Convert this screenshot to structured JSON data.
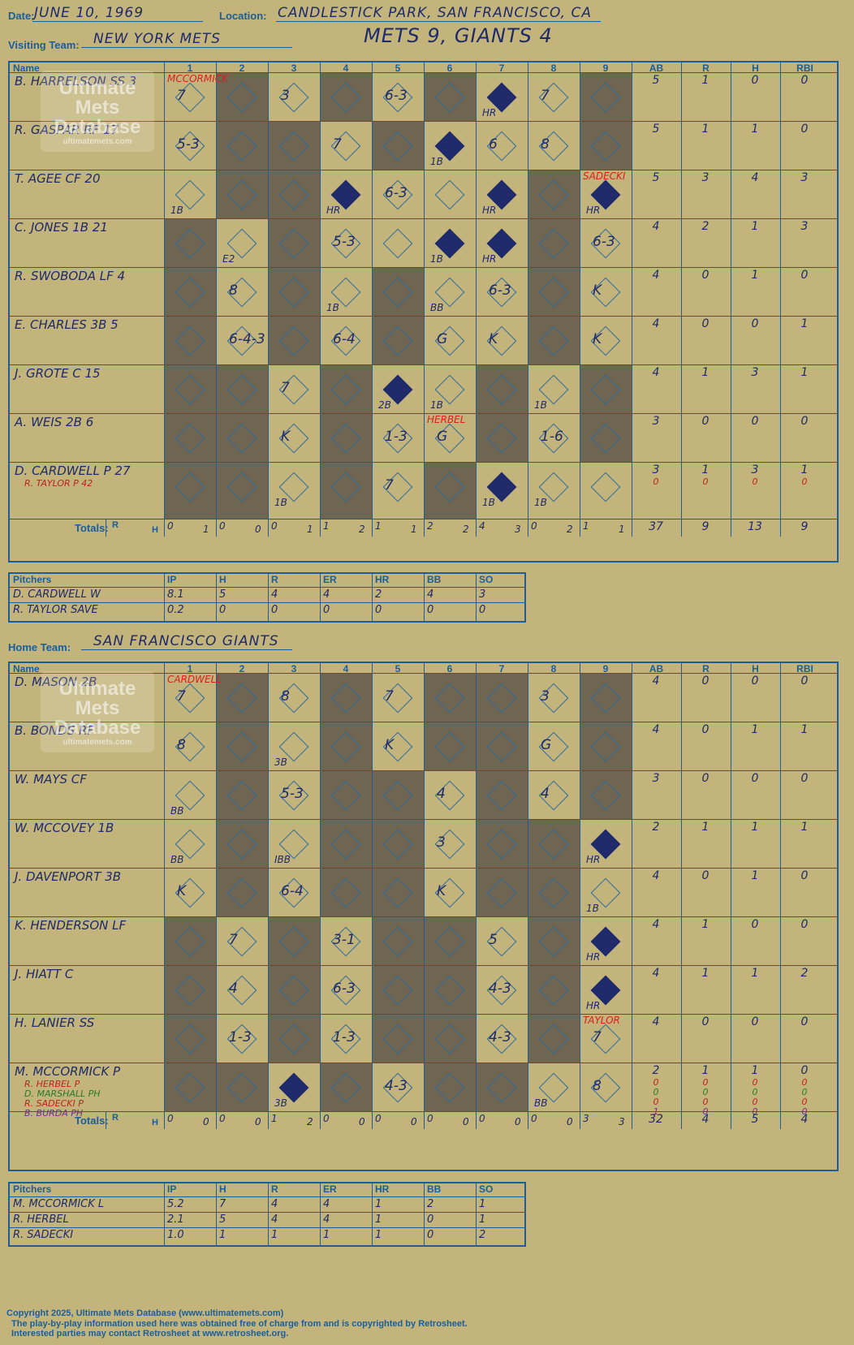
{
  "header": {
    "date_label": "Date:",
    "date": "JUNE 10, 1969",
    "location_label": "Location:",
    "location": "CANDLESTICK PARK, SAN FRANCISCO, CA",
    "visiting_label": "Visiting Team:",
    "visiting": "NEW YORK METS",
    "score": "METS 9, GIANTS 4",
    "home_label": "Home Team:",
    "home": "SAN FRANCISCO GIANTS"
  },
  "columns": {
    "name": "Name",
    "innings": [
      "1",
      "2",
      "3",
      "4",
      "5",
      "6",
      "7",
      "8",
      "9"
    ],
    "stats": [
      "AB",
      "R",
      "H",
      "RBI"
    ]
  },
  "totals_label": "Totals:",
  "r": "R",
  "h": "H",
  "watermark": {
    "line1": "Ultimate",
    "line2": "Mets",
    "line3": "Database",
    "line4": "ultimatemets.com"
  },
  "visitors": {
    "players": [
      {
        "name": "B. HARRELSON SS",
        "num": "3",
        "stats": [
          "5",
          "1",
          "0",
          "0"
        ]
      },
      {
        "name": "R. GASPAR RF",
        "num": "17",
        "stats": [
          "5",
          "1",
          "1",
          "0"
        ]
      },
      {
        "name": "T. AGEE CF",
        "num": "20",
        "stats": [
          "5",
          "3",
          "4",
          "3"
        ]
      },
      {
        "name": "C. JONES 1B",
        "num": "21",
        "stats": [
          "4",
          "2",
          "1",
          "3"
        ]
      },
      {
        "name": "R. SWOBODA LF",
        "num": "4",
        "stats": [
          "4",
          "0",
          "1",
          "0"
        ]
      },
      {
        "name": "E. CHARLES 3B",
        "num": "5",
        "stats": [
          "4",
          "0",
          "0",
          "1"
        ]
      },
      {
        "name": "J. GROTE C",
        "num": "15",
        "stats": [
          "4",
          "1",
          "3",
          "1"
        ]
      },
      {
        "name": "A. WEIS 2B",
        "num": "6",
        "stats": [
          "3",
          "0",
          "0",
          "0"
        ]
      },
      {
        "name": "D. CARDWELL P",
        "num": "27",
        "stats": [
          "3",
          "1",
          "3",
          "1"
        ],
        "sub": "R. TAYLOR P 42",
        "sub_stats": [
          "0",
          "0",
          "0",
          "0"
        ]
      }
    ],
    "totals": [
      [
        "0",
        "1"
      ],
      [
        "0",
        "0"
      ],
      [
        "0",
        "1"
      ],
      [
        "1",
        "2"
      ],
      [
        "1",
        "1"
      ],
      [
        "2",
        "2"
      ],
      [
        "4",
        "3"
      ],
      [
        "0",
        "2"
      ],
      [
        "1",
        "1"
      ]
    ],
    "total_stats": [
      "37",
      "9",
      "13",
      "9"
    ],
    "pitchers_header": [
      "Pitchers",
      "IP",
      "H",
      "R",
      "ER",
      "HR",
      "BB",
      "SO"
    ],
    "pitchers": [
      [
        "D. CARDWELL  W",
        "8.1",
        "5",
        "4",
        "4",
        "2",
        "4",
        "3"
      ],
      [
        "R. TAYLOR  SAVE",
        "0.2",
        "0",
        "0",
        "0",
        "0",
        "0",
        "0"
      ]
    ],
    "pitch_change": [
      {
        "text": "MCCORMICK",
        "row": 0,
        "col": 0
      },
      {
        "text": "SADECKI",
        "row": 2,
        "col": 8
      },
      {
        "text": "HERBEL",
        "row": 7,
        "col": 5
      }
    ]
  },
  "home": {
    "players": [
      {
        "name": "D. MASON 2B",
        "stats": [
          "4",
          "0",
          "0",
          "0"
        ]
      },
      {
        "name": "B. BONDS RF",
        "stats": [
          "4",
          "0",
          "1",
          "1"
        ]
      },
      {
        "name": "W. MAYS CF",
        "stats": [
          "3",
          "0",
          "0",
          "0"
        ]
      },
      {
        "name": "W. MCCOVEY 1B",
        "stats": [
          "2",
          "1",
          "1",
          "1"
        ]
      },
      {
        "name": "J. DAVENPORT 3B",
        "stats": [
          "4",
          "0",
          "1",
          "0"
        ]
      },
      {
        "name": "K. HENDERSON LF",
        "stats": [
          "4",
          "1",
          "0",
          "0"
        ]
      },
      {
        "name": "J. HIATT C",
        "stats": [
          "4",
          "1",
          "1",
          "2"
        ]
      },
      {
        "name": "H. LANIER SS",
        "stats": [
          "4",
          "0",
          "0",
          "0"
        ]
      },
      {
        "name": "M. MCCORMICK P",
        "stats": [
          "2",
          "1",
          "1",
          "0"
        ],
        "subs": [
          {
            "name": "R. HERBEL P",
            "cls": "r",
            "stats": [
              "0",
              "0",
              "0",
              "0"
            ]
          },
          {
            "name": "D. MARSHALL PH",
            "cls": "g",
            "stats": [
              "0",
              "0",
              "0",
              "0"
            ]
          },
          {
            "name": "R. SADECKI P",
            "cls": "r",
            "stats": [
              "0",
              "0",
              "0",
              "0"
            ]
          },
          {
            "name": "B. BURDA PH",
            "cls": "p",
            "stats": [
              "1",
              "0",
              "0",
              "0"
            ]
          }
        ]
      }
    ],
    "totals": [
      [
        "0",
        "0"
      ],
      [
        "0",
        "0"
      ],
      [
        "1",
        "2"
      ],
      [
        "0",
        "0"
      ],
      [
        "0",
        "0"
      ],
      [
        "0",
        "0"
      ],
      [
        "0",
        "0"
      ],
      [
        "0",
        "0"
      ],
      [
        "3",
        "3"
      ]
    ],
    "total_stats": [
      "32",
      "4",
      "5",
      "4"
    ],
    "pitchers_header": [
      "Pitchers",
      "IP",
      "H",
      "R",
      "ER",
      "HR",
      "BB",
      "SO"
    ],
    "pitchers": [
      [
        "M. MCCORMICK  L",
        "5.2",
        "7",
        "4",
        "4",
        "1",
        "2",
        "1"
      ],
      [
        "R. HERBEL",
        "2.1",
        "5",
        "4",
        "4",
        "1",
        "0",
        "1"
      ],
      [
        "R. SADECKI",
        "1.0",
        "1",
        "1",
        "1",
        "1",
        "0",
        "2"
      ]
    ],
    "pitch_change": [
      {
        "text": "CARDWELL",
        "row": 0,
        "col": 0
      },
      {
        "text": "TAYLOR",
        "row": 7,
        "col": 8
      }
    ]
  },
  "footer": {
    "line1": "Copyright 2025, Ultimate Mets Database (www.ultimatemets.com)",
    "line2": "The play-by-play information used here was obtained free of charge from and is copyrighted by Retrosheet.",
    "line3": "Interested parties may contact Retrosheet at www.retrosheet.org."
  },
  "plays_visitors": [
    [
      [
        "7"
      ],
      [],
      [
        "3"
      ],
      [],
      [
        "6-3"
      ],
      [],
      [
        "HR",
        "S"
      ],
      [
        "7"
      ],
      []
    ],
    [
      [
        "5-3"
      ],
      [],
      [],
      [
        "7"
      ],
      [],
      [
        "1B",
        "S"
      ],
      [
        "6"
      ],
      [
        "8"
      ],
      []
    ],
    [
      [
        "1B"
      ],
      [],
      [],
      [
        "HR",
        "S"
      ],
      [
        "6-3"
      ],
      [],
      [
        "HR",
        "S"
      ],
      [],
      [
        "HR",
        "S"
      ]
    ],
    [
      [],
      [
        "E2"
      ],
      [],
      [
        "5-3"
      ],
      [],
      [
        "1B",
        "S"
      ],
      [
        "HR",
        "S"
      ],
      [],
      [
        "6-3"
      ]
    ],
    [
      [],
      [
        "8"
      ],
      [],
      [
        "1B"
      ],
      [],
      [
        "BB"
      ],
      [
        "6-3"
      ],
      [],
      [
        "K"
      ]
    ],
    [
      [],
      [
        "6-4-3"
      ],
      [],
      [
        "6-4"
      ],
      [],
      [
        "G"
      ],
      [
        "K"
      ],
      [],
      [
        "K"
      ]
    ],
    [
      [],
      [],
      [
        "7"
      ],
      [],
      [
        "2B",
        "S"
      ],
      [
        "1B"
      ],
      [],
      [
        "1B"
      ],
      []
    ],
    [
      [],
      [],
      [
        "K"
      ],
      [],
      [
        "1-3"
      ],
      [
        "G"
      ],
      [],
      [
        "1-6"
      ],
      []
    ],
    [
      [],
      [],
      [
        "1B"
      ],
      [],
      [
        "7"
      ],
      [],
      [
        "1B",
        "S"
      ],
      [
        "1B"
      ],
      []
    ]
  ],
  "plays_home": [
    [
      [
        "7"
      ],
      [],
      [
        "8"
      ],
      [],
      [
        "7"
      ],
      [],
      [],
      [
        "3"
      ],
      []
    ],
    [
      [
        "8"
      ],
      [],
      [
        "3B"
      ],
      [],
      [
        "K"
      ],
      [],
      [],
      [
        "G"
      ],
      []
    ],
    [
      [
        "BB"
      ],
      [],
      [
        "5-3"
      ],
      [],
      [],
      [
        "4"
      ],
      [],
      [
        "4"
      ],
      []
    ],
    [
      [
        "BB"
      ],
      [],
      [
        "IBB"
      ],
      [],
      [],
      [
        "3"
      ],
      [],
      [],
      [
        "HR",
        "S"
      ]
    ],
    [
      [
        "K"
      ],
      [],
      [
        "6-4"
      ],
      [],
      [],
      [
        "K"
      ],
      [],
      [],
      [
        "1B"
      ]
    ],
    [
      [],
      [
        "7"
      ],
      [],
      [
        "3-1"
      ],
      [],
      [],
      [
        "5"
      ],
      [],
      [
        "HR",
        "S"
      ]
    ],
    [
      [],
      [
        "4"
      ],
      [],
      [
        "6-3"
      ],
      [],
      [],
      [
        "4-3"
      ],
      [],
      [
        "HR",
        "S"
      ]
    ],
    [
      [],
      [
        "1-3"
      ],
      [],
      [
        "1-3"
      ],
      [],
      [],
      [
        "4-3"
      ],
      [],
      [
        "7"
      ]
    ],
    [
      [],
      [],
      [
        "3B",
        "S"
      ],
      [],
      [
        "4-3"
      ],
      [],
      [],
      [
        "BB"
      ],
      [
        "8"
      ]
    ]
  ],
  "dark_visitors": [
    [
      1,
      3,
      5,
      8
    ],
    [
      1,
      2,
      4,
      8
    ],
    [
      1,
      2,
      7
    ],
    [
      0,
      2,
      7
    ],
    [
      0,
      2,
      4,
      7
    ],
    [
      0,
      2,
      4,
      7
    ],
    [
      0,
      1,
      3,
      6,
      8
    ],
    [
      0,
      1,
      3,
      6,
      8
    ],
    [
      0,
      1,
      3,
      5
    ]
  ],
  "dark_home": [
    [
      1,
      3,
      5,
      6,
      8
    ],
    [
      1,
      3,
      5,
      6,
      8
    ],
    [
      1,
      3,
      4,
      6,
      8
    ],
    [
      1,
      3,
      4,
      6,
      7
    ],
    [
      1,
      3,
      4,
      6,
      7
    ],
    [
      0,
      2,
      4,
      5,
      7
    ],
    [
      0,
      2,
      4,
      5,
      7
    ],
    [
      0,
      2,
      4,
      5,
      7
    ],
    [
      0,
      1,
      3,
      5,
      6
    ]
  ]
}
